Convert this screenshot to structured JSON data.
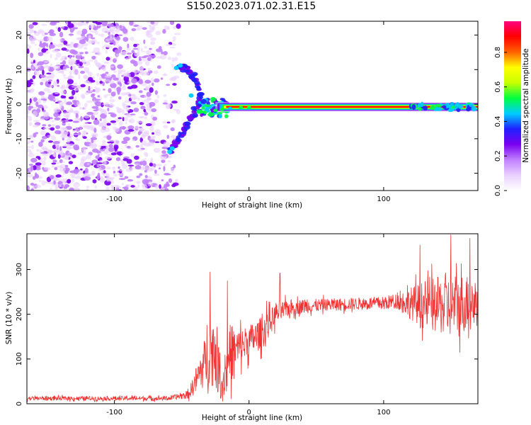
{
  "title": "S150.2023.071.02.31.E15",
  "colors": {
    "snr_line": "#f03232",
    "colormap": [
      "#ffffff",
      "#ead0ff",
      "#c080ff",
      "#7a00f0",
      "#2020ff",
      "#00ccff",
      "#00ff40",
      "#c8ff00",
      "#ffff00",
      "#ff6000",
      "#ff0000",
      "#ff0080"
    ]
  },
  "chart_data": [
    {
      "type": "heatmap",
      "title": "S150.2023.071.02.31.E15",
      "xlabel": "Height of straight line (km)",
      "ylabel": "Frequency (Hz)",
      "xlim": [
        -165,
        170
      ],
      "ylim": [
        -25,
        24
      ],
      "x_ticks": [
        -100,
        0,
        100
      ],
      "x_tick_labels": [
        "-100",
        "0",
        "100"
      ],
      "y_ticks": [
        -20,
        -10,
        0,
        10,
        20
      ],
      "y_tick_labels": [
        "-20",
        "-10",
        "0",
        "10",
        "20"
      ],
      "colorbar": {
        "label": "Normalized spectral amplitude",
        "ticks": [
          0.0,
          0.2,
          0.4,
          0.6,
          0.8
        ],
        "tick_labels": [
          "0.0",
          "0.2",
          "0.4",
          "0.6",
          "0.8"
        ],
        "range": [
          0,
          0.98
        ]
      },
      "features": {
        "noise_region_x": [
          -165,
          -60
        ],
        "arc_points": [
          [
            -58,
            -13.5
          ],
          [
            -52,
            -10
          ],
          [
            -46,
            -6
          ],
          [
            -40,
            -2
          ],
          [
            -36,
            3
          ],
          [
            -42,
            8
          ],
          [
            -48,
            10.5
          ],
          [
            -52,
            11
          ]
        ],
        "ridge_start": [
          -28,
          -1.8
        ],
        "ridge_frequency": -0.8,
        "ridge_x_range": [
          -25,
          170
        ],
        "ridge_peak_amplitude": 0.95
      }
    },
    {
      "type": "line",
      "xlabel": "Height of straight line (km)",
      "ylabel": "SNR (10 * v/v)",
      "xlim": [
        -165,
        170
      ],
      "ylim": [
        0,
        380
      ],
      "x_ticks": [
        -100,
        0,
        100
      ],
      "x_tick_labels": [
        "-100",
        "0",
        "100"
      ],
      "y_ticks": [
        0,
        100,
        200,
        300
      ],
      "y_tick_labels": [
        "0",
        "100",
        "200",
        "300"
      ],
      "series": [
        {
          "color": "#f03232",
          "envelope": [
            {
              "x": -165,
              "mean": 12,
              "spread": 8
            },
            {
              "x": -60,
              "mean": 12,
              "spread": 8
            },
            {
              "x": -45,
              "mean": 20,
              "spread": 15
            },
            {
              "x": -38,
              "mean": 60,
              "spread": 60
            },
            {
              "x": -30,
              "mean": 110,
              "spread": 110
            },
            {
              "x": -25,
              "mean": 120,
              "spread": 140
            },
            {
              "x": -20,
              "mean": 40,
              "spread": 60
            },
            {
              "x": -15,
              "mean": 110,
              "spread": 120
            },
            {
              "x": -10,
              "mean": 120,
              "spread": 80
            },
            {
              "x": 0,
              "mean": 140,
              "spread": 60
            },
            {
              "x": 10,
              "mean": 160,
              "spread": 60
            },
            {
              "x": 20,
              "mean": 200,
              "spread": 40
            },
            {
              "x": 30,
              "mean": 215,
              "spread": 30
            },
            {
              "x": 60,
              "mean": 222,
              "spread": 22
            },
            {
              "x": 100,
              "mean": 225,
              "spread": 25
            },
            {
              "x": 110,
              "mean": 230,
              "spread": 30
            },
            {
              "x": 120,
              "mean": 225,
              "spread": 60
            },
            {
              "x": 130,
              "mean": 220,
              "spread": 90
            },
            {
              "x": 150,
              "mean": 220,
              "spread": 120
            },
            {
              "x": 170,
              "mean": 230,
              "spread": 100
            }
          ],
          "peaks": [
            {
              "x": -29,
              "y": 295
            },
            {
              "x": -16,
              "y": 275
            },
            {
              "x": 13,
              "y": 230
            },
            {
              "x": 23,
              "y": 292
            },
            {
              "x": 127,
              "y": 355
            },
            {
              "x": 150,
              "y": 378
            },
            {
              "x": 164,
              "y": 370
            }
          ]
        }
      ]
    }
  ]
}
